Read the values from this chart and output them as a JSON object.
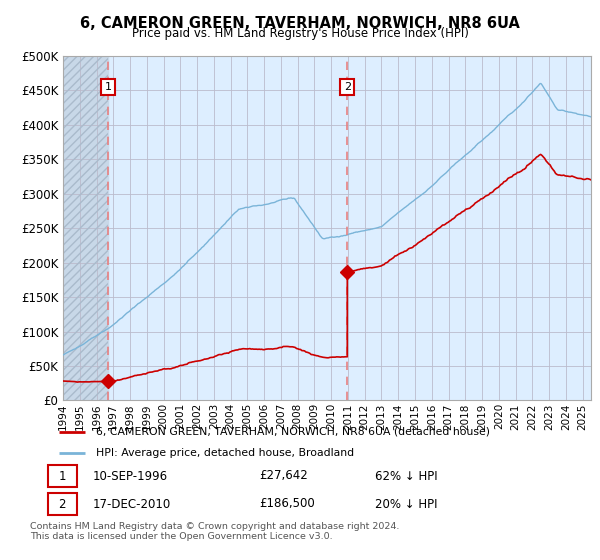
{
  "title": "6, CAMERON GREEN, TAVERHAM, NORWICH, NR8 6UA",
  "subtitle": "Price paid vs. HM Land Registry's House Price Index (HPI)",
  "ylabel_ticks": [
    "£0",
    "£50K",
    "£100K",
    "£150K",
    "£200K",
    "£250K",
    "£300K",
    "£350K",
    "£400K",
    "£450K",
    "£500K"
  ],
  "ytick_values": [
    0,
    50000,
    100000,
    150000,
    200000,
    250000,
    300000,
    350000,
    400000,
    450000,
    500000
  ],
  "ylim": [
    0,
    500000
  ],
  "xlim_start": 1994.0,
  "xlim_end": 2025.5,
  "sale1_date": 1996.7,
  "sale1_price": 27642,
  "sale1_label": "1",
  "sale2_date": 2010.96,
  "sale2_price": 186500,
  "sale2_label": "2",
  "hpi_color": "#7ab4d8",
  "price_color": "#cc0000",
  "sale_marker_color": "#cc0000",
  "annotation_box_color": "#cc0000",
  "dashed_line_color": "#e88080",
  "background_plot": "#ddeeff",
  "grid_color": "#bbbbcc",
  "legend_label_price": "6, CAMERON GREEN, TAVERHAM, NORWICH, NR8 6UA (detached house)",
  "legend_label_hpi": "HPI: Average price, detached house, Broadland",
  "footer": "Contains HM Land Registry data © Crown copyright and database right 2024.\nThis data is licensed under the Open Government Licence v3.0.",
  "annotation1_date": "10-SEP-1996",
  "annotation1_price": "£27,642",
  "annotation1_pct": "62% ↓ HPI",
  "annotation2_date": "17-DEC-2010",
  "annotation2_price": "£186,500",
  "annotation2_pct": "20% ↓ HPI",
  "xtick_years": [
    1994,
    1995,
    1996,
    1997,
    1998,
    1999,
    2000,
    2001,
    2002,
    2003,
    2004,
    2005,
    2006,
    2007,
    2008,
    2009,
    2010,
    2011,
    2012,
    2013,
    2014,
    2015,
    2016,
    2017,
    2018,
    2019,
    2020,
    2021,
    2022,
    2023,
    2024,
    2025
  ]
}
